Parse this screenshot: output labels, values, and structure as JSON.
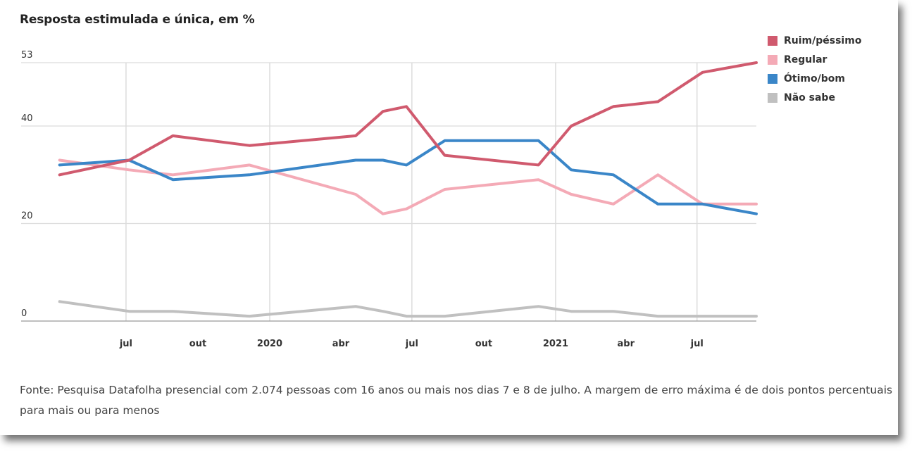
{
  "title": "Resposta estimulada e única, em %",
  "source": "Fonte: Pesquisa Datafolha presencial com 2.074 pessoas com 16 anos ou mais nos dias 7 e 8 de julho. A margem de erro máxima é de dois pontos percentuais para mais ou para menos",
  "legend": [
    {
      "label": "Ruim/péssimo",
      "color": "#d05a6e"
    },
    {
      "label": "Regular",
      "color": "#f4aab6"
    },
    {
      "label": "Ótimo/bom",
      "color": "#3a86c8"
    },
    {
      "label": "Não sabe",
      "color": "#c0c0c0"
    }
  ],
  "chart_data": {
    "type": "line",
    "title": "Resposta estimulada e única, em %",
    "xlabel": "",
    "ylabel": "",
    "ylim": [
      0,
      53
    ],
    "y_ticks": [
      0,
      20,
      40,
      53
    ],
    "x_range": [
      "2019-04-01",
      "2021-09-15"
    ],
    "x_ticks": [
      {
        "date": "2019-07-01",
        "label": "jul"
      },
      {
        "date": "2019-10-01",
        "label": "out"
      },
      {
        "date": "2020-01-01",
        "label": "2020"
      },
      {
        "date": "2020-04-01",
        "label": "abr"
      },
      {
        "date": "2020-07-01",
        "label": "jul"
      },
      {
        "date": "2020-10-01",
        "label": "out"
      },
      {
        "date": "2021-01-01",
        "label": "2021"
      },
      {
        "date": "2021-04-01",
        "label": "abr"
      },
      {
        "date": "2021-07-01",
        "label": "jul"
      }
    ],
    "gridlines": "vertical at year ticks and July; horizontal at 20, 40, 53",
    "legend_position": "top-right",
    "x": [
      "2019-04-07",
      "2019-07-05",
      "2019-08-30",
      "2019-12-06",
      "2020-04-20",
      "2020-05-25",
      "2020-06-24",
      "2020-08-12",
      "2020-12-10",
      "2021-01-21",
      "2021-03-16",
      "2021-05-12",
      "2021-07-08",
      "2021-09-15"
    ],
    "series": [
      {
        "name": "Ruim/péssimo",
        "color": "#d05a6e",
        "values": [
          30,
          33,
          38,
          36,
          38,
          43,
          44,
          34,
          32,
          40,
          44,
          45,
          51,
          53
        ]
      },
      {
        "name": "Regular",
        "color": "#f4aab6",
        "values": [
          33,
          31,
          30,
          32,
          26,
          22,
          23,
          27,
          29,
          26,
          24,
          30,
          24,
          24
        ]
      },
      {
        "name": "Ótimo/bom",
        "color": "#3a86c8",
        "values": [
          32,
          33,
          29,
          30,
          33,
          33,
          32,
          37,
          37,
          31,
          30,
          24,
          24,
          22
        ]
      },
      {
        "name": "Não sabe",
        "color": "#c0c0c0",
        "values": [
          4,
          2,
          2,
          1,
          3,
          2,
          1,
          1,
          3,
          2,
          2,
          1,
          1,
          1
        ]
      }
    ]
  }
}
